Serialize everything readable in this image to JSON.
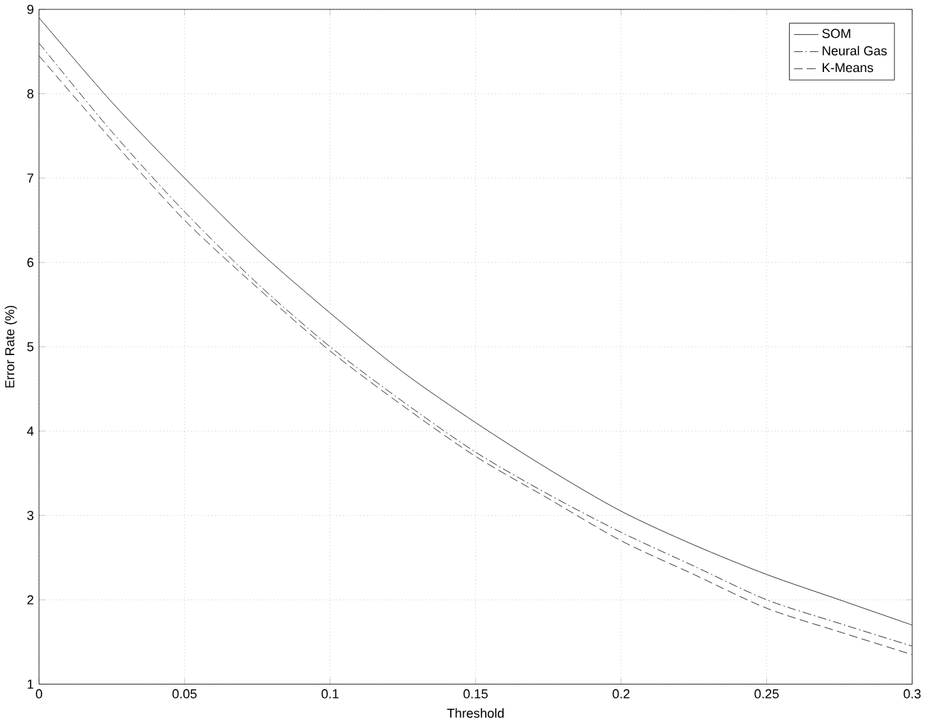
{
  "chart_data": {
    "type": "line",
    "xlabel": "Threshold",
    "ylabel": "Error Rate (%)",
    "x": [
      0,
      0.025,
      0.05,
      0.075,
      0.1,
      0.125,
      0.15,
      0.175,
      0.2,
      0.225,
      0.25,
      0.275,
      0.3
    ],
    "series": [
      {
        "name": "SOM",
        "color": "#000000",
        "line_style": "solid",
        "values": [
          8.9,
          7.9,
          7.0,
          6.15,
          5.4,
          4.7,
          4.1,
          3.55,
          3.05,
          2.65,
          2.3,
          2.0,
          1.7
        ]
      },
      {
        "name": "Neural Gas",
        "color": "#000000",
        "line_style": "dashdot",
        "values": [
          8.6,
          7.55,
          6.6,
          5.75,
          5.0,
          4.35,
          3.75,
          3.25,
          2.8,
          2.4,
          2.0,
          1.72,
          1.45
        ]
      },
      {
        "name": "K-Means",
        "color": "#000000",
        "line_style": "dashed",
        "values": [
          8.45,
          7.45,
          6.5,
          5.7,
          4.95,
          4.3,
          3.7,
          3.2,
          2.7,
          2.3,
          1.9,
          1.62,
          1.35
        ]
      }
    ],
    "xlim": [
      0,
      0.3
    ],
    "xticks": [
      0,
      0.05,
      0.1,
      0.15,
      0.2,
      0.25,
      0.3
    ],
    "ylim": [
      1,
      9
    ],
    "yticks": [
      1,
      2,
      3,
      4,
      5,
      6,
      7,
      8,
      9
    ],
    "grid": true,
    "legend": "top right",
    "marker": "none"
  }
}
